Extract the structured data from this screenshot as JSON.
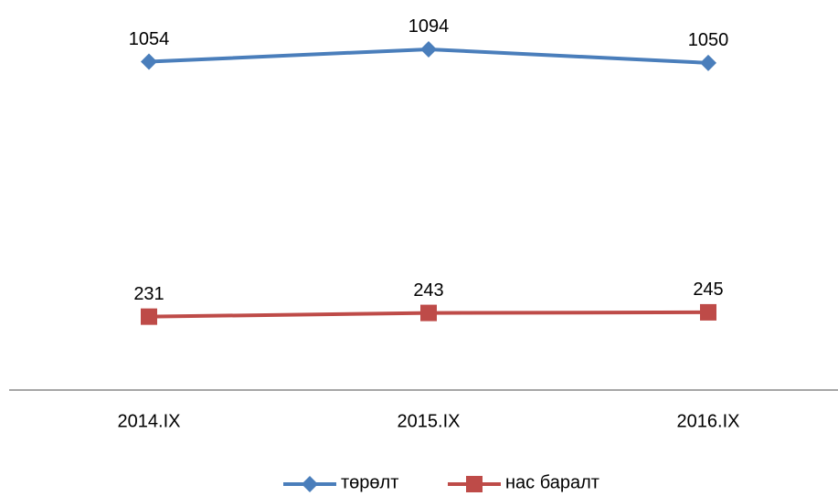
{
  "chart_data": {
    "type": "line",
    "categories": [
      "2014.IX",
      "2015.IX",
      "2016.IX"
    ],
    "series": [
      {
        "name": "төрөлт",
        "color": "#4a7ebb",
        "marker": "diamond",
        "values": [
          1054,
          1094,
          1050
        ]
      },
      {
        "name": "нас баралт",
        "color": "#be4b48",
        "marker": "square",
        "values": [
          231,
          243,
          245
        ]
      }
    ],
    "ylim": [
      0,
      1200
    ]
  }
}
